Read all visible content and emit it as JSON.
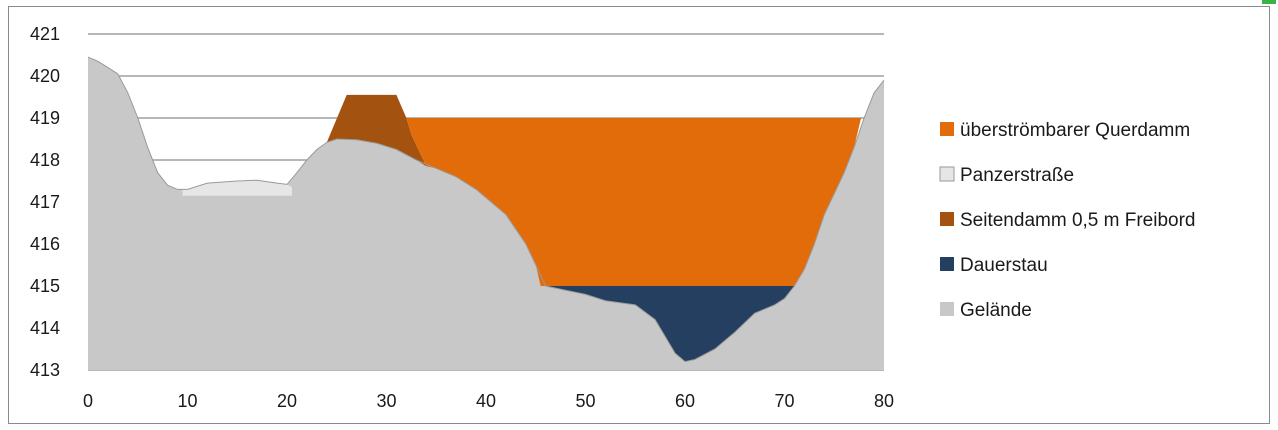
{
  "chart_data": {
    "type": "area",
    "xlim": [
      0,
      80
    ],
    "ylim": [
      413,
      421
    ],
    "x_ticks": [
      0,
      10,
      20,
      30,
      40,
      50,
      60,
      70,
      80
    ],
    "y_ticks": [
      413,
      414,
      415,
      416,
      417,
      418,
      419,
      420,
      421
    ],
    "grid": "horizontal",
    "legend_position": "right",
    "series": [
      {
        "name": "Gelände",
        "color": "#c8c8c8",
        "points": [
          [
            0,
            420.45
          ],
          [
            1,
            420.35
          ],
          [
            2,
            420.2
          ],
          [
            3,
            420.05
          ],
          [
            4,
            419.6
          ],
          [
            5,
            419.0
          ],
          [
            6,
            418.3
          ],
          [
            7,
            417.7
          ],
          [
            8,
            417.4
          ],
          [
            9,
            417.3
          ],
          [
            10,
            417.3
          ],
          [
            12,
            417.45
          ],
          [
            15,
            417.5
          ],
          [
            17,
            417.52
          ],
          [
            19,
            417.45
          ],
          [
            20,
            417.42
          ],
          [
            21,
            417.7
          ],
          [
            22,
            418.0
          ],
          [
            23,
            418.25
          ],
          [
            24,
            418.42
          ],
          [
            25,
            418.5
          ],
          [
            27,
            418.48
          ],
          [
            29,
            418.4
          ],
          [
            31,
            418.25
          ],
          [
            33,
            418.0
          ],
          [
            35,
            417.8
          ],
          [
            37,
            417.6
          ],
          [
            39,
            417.3
          ],
          [
            40,
            417.1
          ],
          [
            42,
            416.7
          ],
          [
            44,
            416.0
          ],
          [
            45,
            415.5
          ],
          [
            46,
            415.0
          ],
          [
            48,
            414.9
          ],
          [
            50,
            414.8
          ],
          [
            52,
            414.65
          ],
          [
            55,
            414.55
          ],
          [
            57,
            414.2
          ],
          [
            58,
            413.8
          ],
          [
            59,
            413.4
          ],
          [
            60,
            413.2
          ],
          [
            61,
            413.25
          ],
          [
            63,
            413.5
          ],
          [
            65,
            413.9
          ],
          [
            67,
            414.35
          ],
          [
            69,
            414.55
          ],
          [
            70,
            414.7
          ],
          [
            71,
            415.0
          ],
          [
            72,
            415.4
          ],
          [
            73,
            416.0
          ],
          [
            74,
            416.7
          ],
          [
            75,
            417.2
          ],
          [
            76,
            417.7
          ],
          [
            77,
            418.3
          ],
          [
            78,
            419.0
          ],
          [
            79,
            419.6
          ],
          [
            80,
            419.9
          ]
        ]
      },
      {
        "name": "Panzerstraße",
        "color": "#e6e6e6",
        "points": [
          [
            9.5,
            417.3
          ],
          [
            10,
            417.3
          ],
          [
            12,
            417.45
          ],
          [
            15,
            417.5
          ],
          [
            17,
            417.52
          ],
          [
            19,
            417.45
          ],
          [
            20,
            417.42
          ],
          [
            20.5,
            417.35
          ],
          [
            20.5,
            417.15
          ],
          [
            9.5,
            417.15
          ]
        ]
      },
      {
        "name": "Seitendamm 0,5 m Freibord",
        "color": "#a3520f",
        "points": [
          [
            24,
            418.42
          ],
          [
            26,
            419.55
          ],
          [
            31,
            419.55
          ],
          [
            32,
            419.0
          ],
          [
            32.5,
            418.6
          ],
          [
            34,
            417.85
          ],
          [
            33,
            418.0
          ],
          [
            31,
            418.25
          ],
          [
            29,
            418.4
          ],
          [
            27,
            418.48
          ],
          [
            25,
            418.5
          ]
        ]
      },
      {
        "name": "Dauerstau",
        "color": "#243f60",
        "points": [
          [
            45.5,
            415.0
          ],
          [
            71,
            415.0
          ],
          [
            70,
            414.7
          ],
          [
            69,
            414.55
          ],
          [
            67,
            414.35
          ],
          [
            65,
            413.9
          ],
          [
            63,
            413.5
          ],
          [
            61,
            413.25
          ],
          [
            60,
            413.2
          ],
          [
            59,
            413.4
          ],
          [
            58,
            413.8
          ],
          [
            57,
            414.2
          ],
          [
            55,
            414.55
          ],
          [
            52,
            414.65
          ],
          [
            50,
            414.8
          ],
          [
            48,
            414.9
          ],
          [
            46,
            415.0
          ]
        ]
      },
      {
        "name": "überströmbarer Querdamm",
        "color": "#e36c0a",
        "points": [
          [
            32,
            419.0
          ],
          [
            77.7,
            419.0
          ],
          [
            77,
            418.3
          ],
          [
            76,
            417.7
          ],
          [
            75,
            417.2
          ],
          [
            74,
            416.7
          ],
          [
            73,
            416.0
          ],
          [
            72,
            415.4
          ],
          [
            71,
            415.0
          ],
          [
            45.5,
            415.0
          ],
          [
            45,
            415.5
          ],
          [
            44,
            416.0
          ],
          [
            42,
            416.7
          ],
          [
            40,
            417.1
          ],
          [
            39,
            417.3
          ],
          [
            37,
            417.6
          ],
          [
            35,
            417.8
          ],
          [
            34,
            417.85
          ],
          [
            32.5,
            418.6
          ]
        ]
      }
    ],
    "legend": [
      {
        "label": "überströmbarer Querdamm",
        "color": "#e36c0a"
      },
      {
        "label": "Panzerstraße",
        "color": "#e6e6e6"
      },
      {
        "label": "Seitendamm 0,5 m Freibord",
        "color": "#a3520f"
      },
      {
        "label": "Dauerstau",
        "color": "#243f60"
      },
      {
        "label": "Gelände",
        "color": "#c8c8c8"
      }
    ]
  }
}
